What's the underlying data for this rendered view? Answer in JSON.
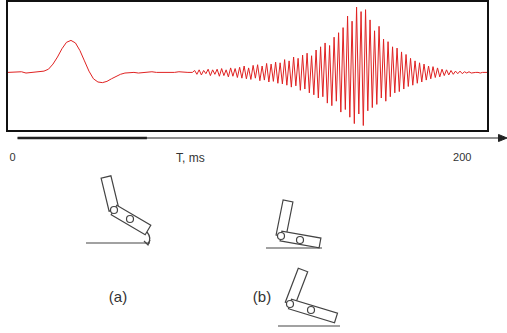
{
  "chart_data": {
    "type": "line",
    "x_label": "T, ms",
    "x": [
      -2,
      0,
      2,
      4,
      6,
      8,
      10,
      12,
      14,
      16,
      18,
      20,
      22,
      24,
      26,
      28,
      30,
      32,
      34,
      36,
      38,
      40,
      42,
      44,
      46,
      48,
      50,
      52,
      54,
      56,
      58,
      60,
      62,
      64,
      66,
      68,
      70,
      72,
      74,
      76,
      78,
      80,
      81,
      82,
      83,
      84,
      85,
      86,
      87,
      88,
      89,
      90,
      91,
      92,
      93,
      94,
      95,
      96,
      97,
      98,
      99,
      100,
      101,
      102,
      103,
      104,
      105,
      106,
      107,
      108,
      109,
      110,
      111,
      112,
      113,
      114,
      115,
      116,
      117,
      118,
      119,
      120,
      121,
      122,
      123,
      124,
      125,
      126,
      127,
      128,
      129,
      130,
      131,
      132,
      133,
      134,
      135,
      136,
      137,
      138,
      139,
      140,
      141,
      142,
      143,
      144,
      145,
      146,
      147,
      148,
      149,
      150,
      151,
      152,
      153,
      154,
      155,
      156,
      157,
      158,
      159,
      160,
      161,
      162,
      163,
      164,
      165,
      166,
      167,
      168,
      169,
      170,
      171,
      172,
      173,
      174,
      175,
      176,
      177,
      178,
      179,
      180,
      181,
      182,
      183,
      184,
      185,
      186,
      187,
      188,
      189,
      190,
      191,
      192,
      193,
      194,
      195,
      196,
      197,
      198,
      199,
      200,
      201,
      202,
      203,
      204,
      205,
      206,
      207,
      208,
      209,
      210,
      211
    ],
    "values": [
      -0.1,
      -0.1,
      -0.1,
      -0.09,
      -0.11,
      -0.1,
      -0.1,
      -0.09,
      -0.08,
      -0.05,
      0.03,
      0.14,
      0.27,
      0.37,
      0.4,
      0.36,
      0.24,
      0.08,
      -0.08,
      -0.2,
      -0.25,
      -0.26,
      -0.24,
      -0.2,
      -0.16,
      -0.13,
      -0.11,
      -0.1,
      -0.1,
      -0.11,
      -0.1,
      -0.1,
      -0.09,
      -0.1,
      -0.1,
      -0.11,
      -0.1,
      -0.1,
      -0.09,
      -0.1,
      -0.1,
      -0.1,
      -0.07,
      -0.13,
      -0.06,
      -0.14,
      -0.07,
      -0.12,
      -0.05,
      -0.15,
      -0.06,
      -0.13,
      -0.05,
      -0.16,
      -0.04,
      -0.15,
      -0.06,
      -0.17,
      -0.03,
      -0.16,
      -0.04,
      -0.18,
      -0.02,
      -0.19,
      0.0,
      -0.2,
      -0.03,
      -0.21,
      0.01,
      -0.19,
      0.02,
      -0.23,
      0.0,
      -0.22,
      0.04,
      -0.25,
      0.03,
      -0.24,
      0.06,
      -0.27,
      0.05,
      -0.28,
      0.1,
      -0.3,
      0.08,
      -0.33,
      0.14,
      -0.31,
      0.12,
      -0.38,
      0.17,
      -0.36,
      0.2,
      -0.42,
      0.16,
      -0.45,
      0.25,
      -0.5,
      0.3,
      -0.48,
      0.36,
      -0.58,
      0.32,
      -0.62,
      0.45,
      -0.55,
      0.52,
      -0.72,
      0.6,
      -0.68,
      0.78,
      -0.8,
      0.7,
      -0.9,
      0.92,
      -0.75,
      0.85,
      -0.93,
      0.88,
      -0.7,
      0.72,
      -0.65,
      0.55,
      -0.6,
      0.62,
      -0.5,
      0.42,
      -0.55,
      0.38,
      -0.48,
      0.3,
      -0.42,
      0.28,
      -0.4,
      0.22,
      -0.36,
      0.18,
      -0.32,
      0.12,
      -0.3,
      0.08,
      -0.27,
      0.05,
      -0.25,
      0.03,
      -0.22,
      0.0,
      -0.2,
      -0.01,
      -0.18,
      -0.03,
      -0.17,
      -0.05,
      -0.15,
      -0.06,
      -0.14,
      -0.07,
      -0.13,
      -0.08,
      -0.12,
      -0.08,
      -0.12,
      -0.09,
      -0.11,
      -0.09,
      -0.11,
      -0.1,
      -0.1,
      -0.1,
      -0.11,
      -0.1,
      -0.1,
      -0.1
    ],
    "color": "#e02222",
    "xlim": [
      -2,
      211
    ],
    "xticks": [
      0,
      200
    ],
    "ylim": [
      -1,
      1
    ],
    "yticks": [],
    "tick_labels": "x",
    "grid": false
  },
  "figures": [
    {
      "label": "(a)"
    },
    {
      "label": "(b)"
    }
  ]
}
